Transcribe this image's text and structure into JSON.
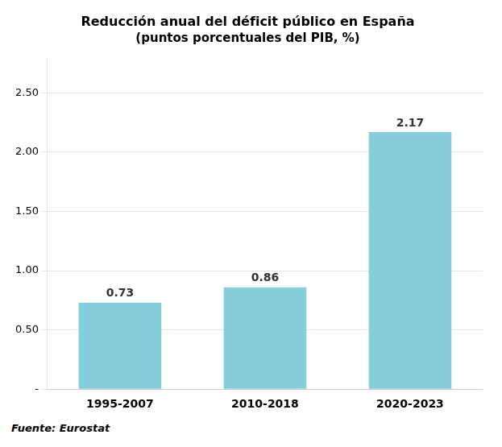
{
  "chart_data": {
    "type": "bar",
    "title": "Reducción anual del déficit público en España",
    "subtitle": "(puntos porcentuales del PIB, %)",
    "categories": [
      "1995-2007",
      "2010-2018",
      "2020-2023"
    ],
    "values": [
      0.73,
      0.86,
      2.17
    ],
    "color": "#87CEDC",
    "ylim": [
      0,
      2.8
    ],
    "yticks": [
      {
        "value": 0.0,
        "label": "-"
      },
      {
        "value": 0.5,
        "label": "0.50"
      },
      {
        "value": 1.0,
        "label": "1.00"
      },
      {
        "value": 1.5,
        "label": "1.50"
      },
      {
        "value": 2.0,
        "label": "2.00"
      },
      {
        "value": 2.5,
        "label": "2.50"
      }
    ],
    "grid": true,
    "data_labels": true,
    "source": "Fuente: Eurostat"
  }
}
